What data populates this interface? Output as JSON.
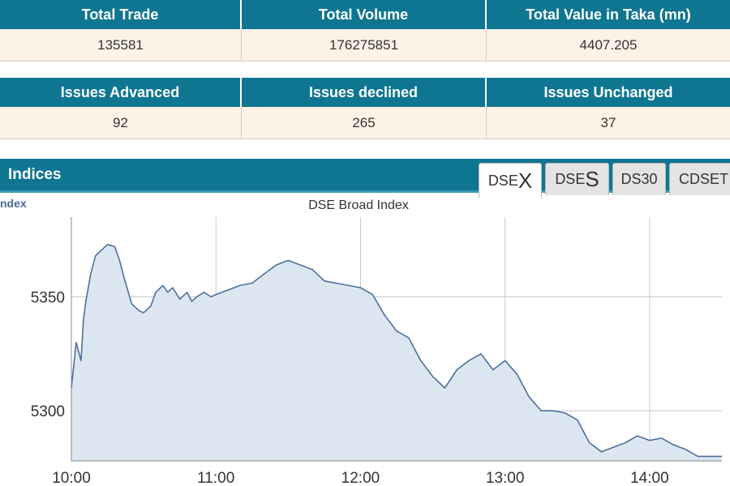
{
  "summary_table": {
    "headers": [
      "Total Trade",
      "Total Volume",
      "Total Value in Taka (mn)"
    ],
    "values": [
      "135581",
      "176275851",
      "4407.205"
    ]
  },
  "issues_table": {
    "headers": [
      "Issues Advanced",
      "Issues declined",
      "Issues Unchanged"
    ],
    "values": [
      "92",
      "265",
      "37"
    ]
  },
  "indices": {
    "title": "Indices",
    "tabs": [
      {
        "prefix": "DSE",
        "suffix": "X",
        "active": true
      },
      {
        "prefix": "DSE",
        "suffix": "S",
        "active": false
      },
      {
        "prefix": "DS30",
        "suffix": "",
        "active": false
      },
      {
        "prefix": "CDSET",
        "suffix": "",
        "active": false
      }
    ],
    "side_label": "ndex"
  },
  "colors": {
    "header_bg": "#0f7691",
    "value_bg": "#fdf2e6",
    "line": "#4d6f9c",
    "area": "#dce6f1",
    "grid": "#c8c8c8"
  },
  "chart_data": {
    "type": "area",
    "title": "DSE Broad Index",
    "xlabel": "",
    "ylabel": "",
    "x_ticks": [
      "10:00",
      "11:00",
      "12:00",
      "13:00",
      "14:00"
    ],
    "y_ticks": [
      5300,
      5350
    ],
    "xlim": [
      "10:00",
      "14:30"
    ],
    "ylim": [
      5278,
      5385
    ],
    "grid": true,
    "legend": "none",
    "series": [
      {
        "x": [
          "10:00",
          "10:02",
          "10:04",
          "10:05",
          "10:06",
          "10:08",
          "10:10",
          "10:12",
          "10:15",
          "10:18",
          "10:20",
          "10:22",
          "10:25",
          "10:28",
          "10:30",
          "10:33",
          "10:35",
          "10:38",
          "10:40",
          "10:42",
          "10:45",
          "10:48",
          "10:50",
          "10:52",
          "10:55",
          "10:58",
          "11:00",
          "11:05",
          "11:10",
          "11:15",
          "11:20",
          "11:25",
          "11:30",
          "11:35",
          "11:40",
          "11:45",
          "11:50",
          "11:55",
          "12:00",
          "12:05",
          "12:10",
          "12:15",
          "12:20",
          "12:25",
          "12:30",
          "12:35",
          "12:40",
          "12:45",
          "12:50",
          "12:55",
          "13:00",
          "13:05",
          "13:10",
          "13:15",
          "13:20",
          "13:25",
          "13:30",
          "13:35",
          "13:40",
          "13:45",
          "13:50",
          "13:55",
          "14:00",
          "14:05",
          "14:10",
          "14:15",
          "14:20",
          "14:25",
          "14:30"
        ],
        "y": [
          5310,
          5330,
          5322,
          5340,
          5348,
          5360,
          5368,
          5370,
          5373,
          5372,
          5366,
          5358,
          5347,
          5344,
          5343,
          5346,
          5352,
          5355,
          5352,
          5354,
          5349,
          5352,
          5348,
          5350,
          5352,
          5350,
          5351,
          5353,
          5355,
          5356,
          5360,
          5364,
          5366,
          5364,
          5362,
          5357,
          5356,
          5355,
          5354,
          5351,
          5342,
          5335,
          5332,
          5322,
          5315,
          5310,
          5318,
          5322,
          5325,
          5318,
          5322,
          5316,
          5306,
          5300,
          5300,
          5299,
          5296,
          5286,
          5282,
          5284,
          5286,
          5289,
          5287,
          5288,
          5285,
          5283,
          5280,
          5280,
          5280
        ]
      }
    ]
  }
}
